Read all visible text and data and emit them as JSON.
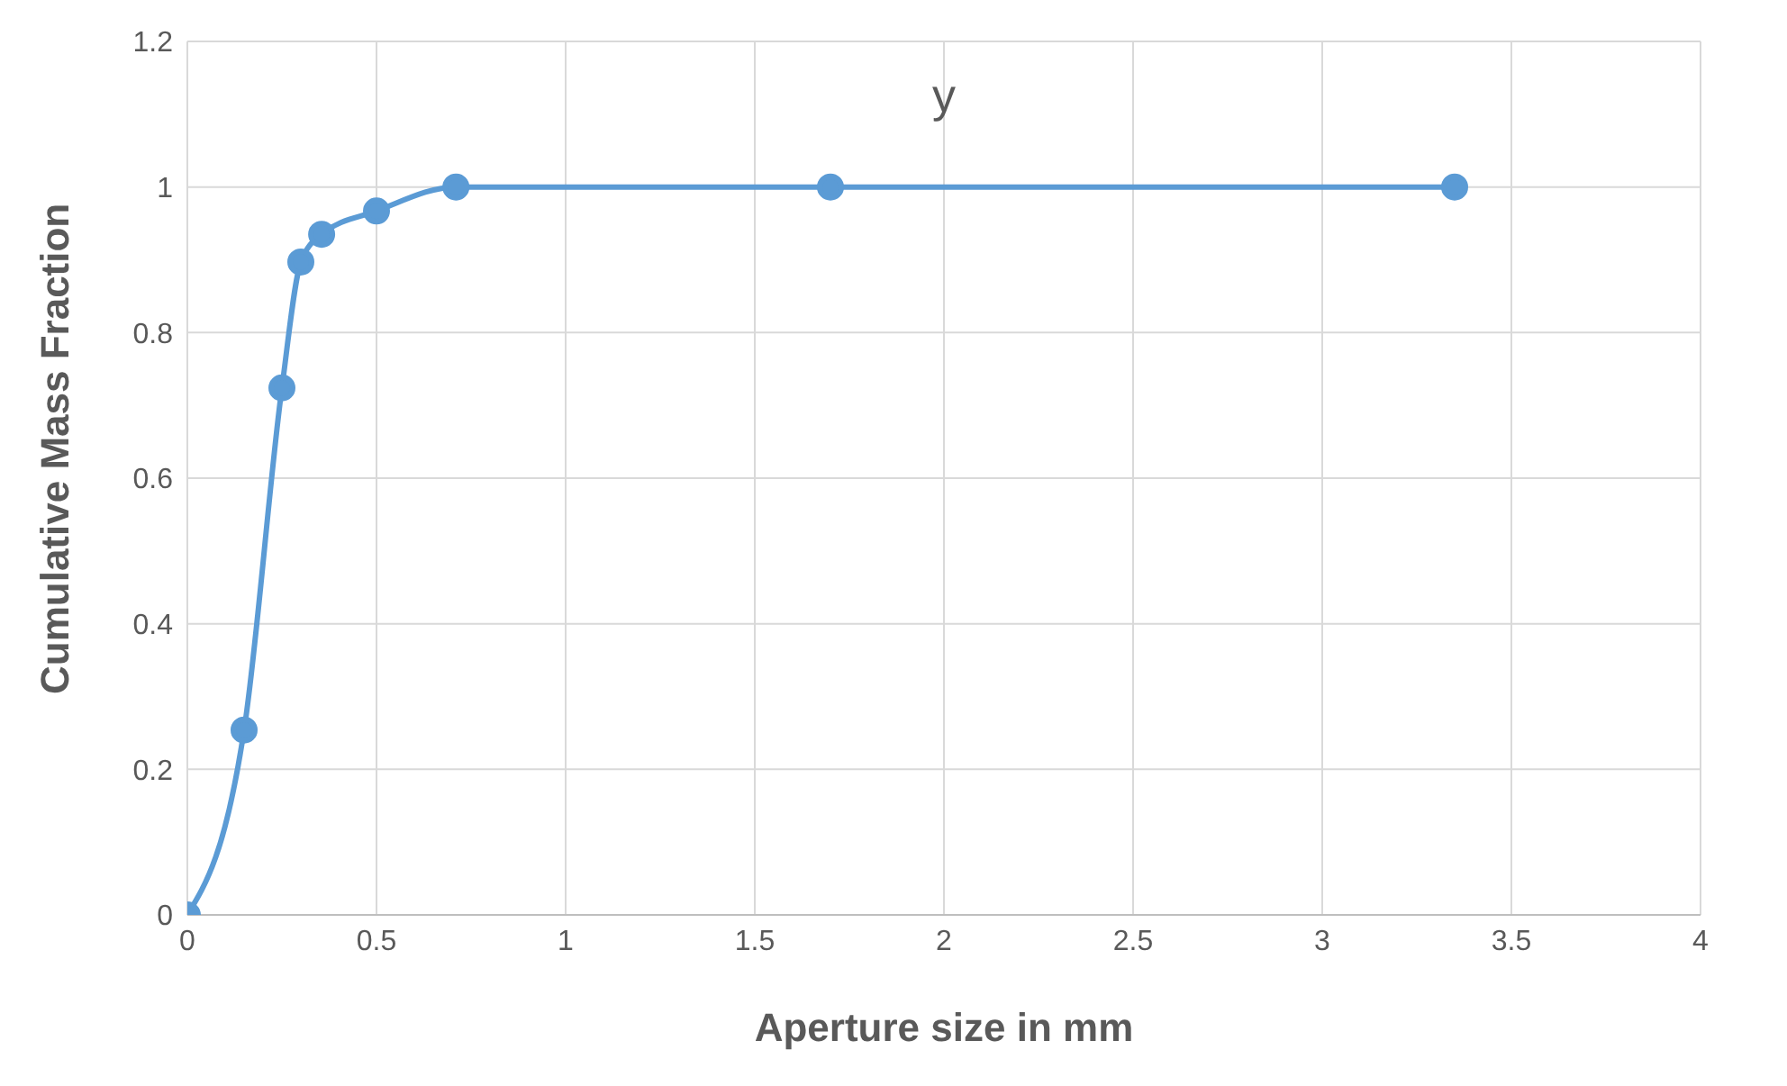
{
  "chart_data": {
    "type": "line",
    "title": "y",
    "xlabel": "Aperture size in mm",
    "ylabel": "Cumulative Mass Fraction",
    "x": [
      0,
      0.15,
      0.25,
      0.3,
      0.355,
      0.5,
      0.71,
      1.7,
      3.35
    ],
    "series": [
      {
        "color": "#5b9bd5",
        "values": [
          0,
          0.254,
          0.724,
          0.897,
          0.935,
          0.967,
          1.0,
          1.0,
          1.0
        ]
      }
    ],
    "xlim": [
      0,
      4
    ],
    "xticks": [
      0,
      0.5,
      1,
      1.5,
      2,
      2.5,
      3,
      3.5,
      4
    ],
    "ylim": [
      0,
      1.2
    ],
    "yticks": [
      0,
      0.2,
      0.4,
      0.6,
      0.8,
      1,
      1.2
    ],
    "grid": true,
    "marker": "circle",
    "line_style": "solid",
    "legend": false
  }
}
